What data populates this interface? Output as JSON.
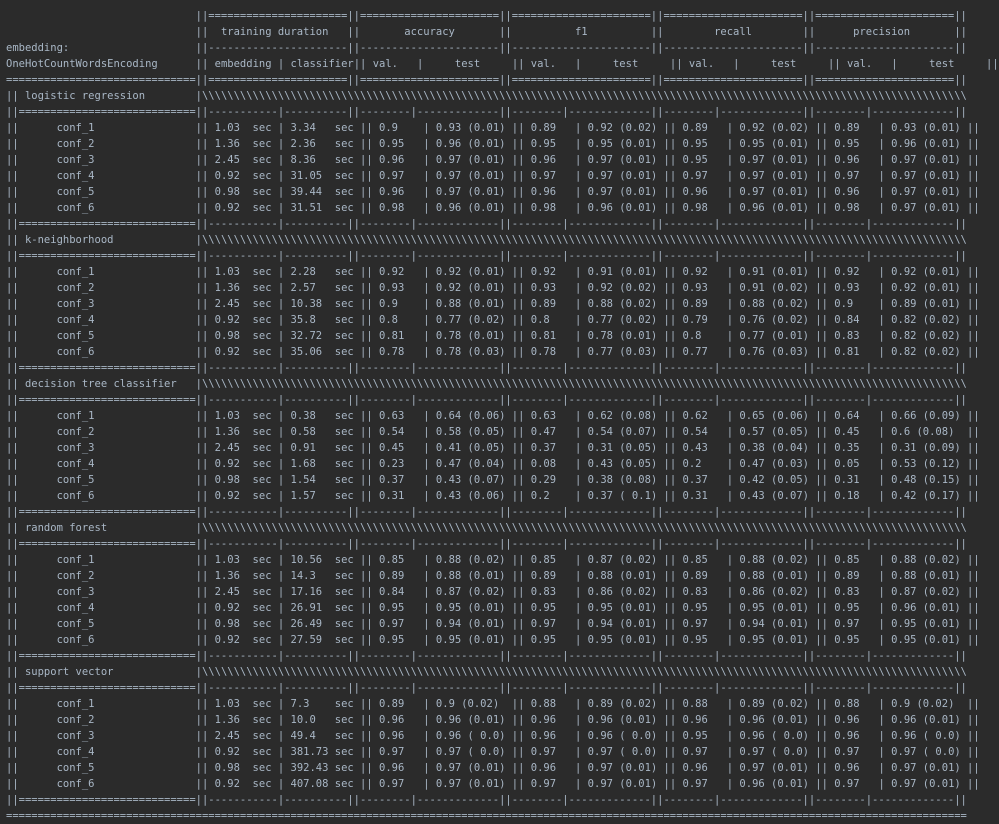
{
  "header": {
    "embedding_label": "embedding:",
    "embedding_name": "OneHotCountWordsEncoding",
    "metric_groups": [
      "training duration",
      "accuracy",
      "f1",
      "recall",
      "precision"
    ],
    "sub_headers": {
      "embedding": "embedding",
      "classifier": "classifier",
      "val": "val.",
      "test": "test"
    },
    "time_unit": "sec"
  },
  "sections": [
    {
      "name": "logistic regression",
      "rows": [
        [
          "conf_1",
          "1.03",
          "3.34",
          "0.9",
          "0.93 (0.01)",
          "0.89",
          "0.92 (0.02)",
          "0.89",
          "0.92 (0.02)",
          "0.89",
          "0.93 (0.01)"
        ],
        [
          "conf_2",
          "1.36",
          "2.36",
          "0.95",
          "0.96 (0.01)",
          "0.95",
          "0.95 (0.01)",
          "0.95",
          "0.95 (0.01)",
          "0.95",
          "0.96 (0.01)"
        ],
        [
          "conf_3",
          "2.45",
          "8.36",
          "0.96",
          "0.97 (0.01)",
          "0.96",
          "0.97 (0.01)",
          "0.95",
          "0.97 (0.01)",
          "0.96",
          "0.97 (0.01)"
        ],
        [
          "conf_4",
          "0.92",
          "31.05",
          "0.97",
          "0.97 (0.01)",
          "0.97",
          "0.97 (0.01)",
          "0.97",
          "0.97 (0.01)",
          "0.97",
          "0.97 (0.01)"
        ],
        [
          "conf_5",
          "0.98",
          "39.44",
          "0.96",
          "0.97 (0.01)",
          "0.96",
          "0.97 (0.01)",
          "0.96",
          "0.97 (0.01)",
          "0.96",
          "0.97 (0.01)"
        ],
        [
          "conf_6",
          "0.92",
          "31.51",
          "0.98",
          "0.96 (0.01)",
          "0.98",
          "0.96 (0.01)",
          "0.98",
          "0.96 (0.01)",
          "0.98",
          "0.97 (0.01)"
        ]
      ]
    },
    {
      "name": "k-neighborhood",
      "rows": [
        [
          "conf_1",
          "1.03",
          "2.28",
          "0.92",
          "0.92 (0.01)",
          "0.92",
          "0.91 (0.01)",
          "0.92",
          "0.91 (0.01)",
          "0.92",
          "0.92 (0.01)"
        ],
        [
          "conf_2",
          "1.36",
          "2.57",
          "0.93",
          "0.92 (0.01)",
          "0.93",
          "0.92 (0.02)",
          "0.93",
          "0.91 (0.02)",
          "0.93",
          "0.92 (0.01)"
        ],
        [
          "conf_3",
          "2.45",
          "10.38",
          "0.9",
          "0.88 (0.01)",
          "0.89",
          "0.88 (0.02)",
          "0.89",
          "0.88 (0.02)",
          "0.9",
          "0.89 (0.01)"
        ],
        [
          "conf_4",
          "0.92",
          "35.8",
          "0.8",
          "0.77 (0.02)",
          "0.8",
          "0.77 (0.02)",
          "0.79",
          "0.76 (0.02)",
          "0.84",
          "0.82 (0.02)"
        ],
        [
          "conf_5",
          "0.98",
          "32.72",
          "0.81",
          "0.78 (0.01)",
          "0.81",
          "0.78 (0.01)",
          "0.8",
          "0.77 (0.01)",
          "0.83",
          "0.82 (0.02)"
        ],
        [
          "conf_6",
          "0.92",
          "35.06",
          "0.78",
          "0.78 (0.03)",
          "0.78",
          "0.77 (0.03)",
          "0.77",
          "0.76 (0.03)",
          "0.81",
          "0.82 (0.02)"
        ]
      ]
    },
    {
      "name": "decision tree classifier",
      "rows": [
        [
          "conf_1",
          "1.03",
          "0.38",
          "0.63",
          "0.64 (0.06)",
          "0.63",
          "0.62 (0.08)",
          "0.62",
          "0.65 (0.06)",
          "0.64",
          "0.66 (0.09)"
        ],
        [
          "conf_2",
          "1.36",
          "0.58",
          "0.54",
          "0.58 (0.05)",
          "0.47",
          "0.54 (0.07)",
          "0.54",
          "0.57 (0.05)",
          "0.45",
          "0.6 (0.08)"
        ],
        [
          "conf_3",
          "2.45",
          "0.91",
          "0.45",
          "0.41 (0.05)",
          "0.37",
          "0.31 (0.05)",
          "0.43",
          "0.38 (0.04)",
          "0.35",
          "0.31 (0.09)"
        ],
        [
          "conf_4",
          "0.92",
          "1.68",
          "0.23",
          "0.47 (0.04)",
          "0.08",
          "0.43 (0.05)",
          "0.2",
          "0.47 (0.03)",
          "0.05",
          "0.53 (0.12)"
        ],
        [
          "conf_5",
          "0.98",
          "1.54",
          "0.37",
          "0.43 (0.07)",
          "0.29",
          "0.38 (0.08)",
          "0.37",
          "0.42 (0.05)",
          "0.31",
          "0.48 (0.15)"
        ],
        [
          "conf_6",
          "0.92",
          "1.57",
          "0.31",
          "0.43 (0.06)",
          "0.2",
          "0.37 ( 0.1)",
          "0.31",
          "0.43 (0.07)",
          "0.18",
          "0.42 (0.17)"
        ]
      ]
    },
    {
      "name": "random forest",
      "rows": [
        [
          "conf_1",
          "1.03",
          "10.56",
          "0.85",
          "0.88 (0.02)",
          "0.85",
          "0.87 (0.02)",
          "0.85",
          "0.88 (0.02)",
          "0.85",
          "0.88 (0.02)"
        ],
        [
          "conf_2",
          "1.36",
          "14.3",
          "0.89",
          "0.88 (0.01)",
          "0.89",
          "0.88 (0.01)",
          "0.89",
          "0.88 (0.01)",
          "0.89",
          "0.88 (0.01)"
        ],
        [
          "conf_3",
          "2.45",
          "17.16",
          "0.84",
          "0.87 (0.02)",
          "0.83",
          "0.86 (0.02)",
          "0.83",
          "0.86 (0.02)",
          "0.83",
          "0.87 (0.02)"
        ],
        [
          "conf_4",
          "0.92",
          "26.91",
          "0.95",
          "0.95 (0.01)",
          "0.95",
          "0.95 (0.01)",
          "0.95",
          "0.95 (0.01)",
          "0.95",
          "0.96 (0.01)"
        ],
        [
          "conf_5",
          "0.98",
          "26.49",
          "0.97",
          "0.94 (0.01)",
          "0.97",
          "0.94 (0.01)",
          "0.97",
          "0.94 (0.01)",
          "0.97",
          "0.95 (0.01)"
        ],
        [
          "conf_6",
          "0.92",
          "27.59",
          "0.95",
          "0.95 (0.01)",
          "0.95",
          "0.95 (0.01)",
          "0.95",
          "0.95 (0.01)",
          "0.95",
          "0.95 (0.01)"
        ]
      ]
    },
    {
      "name": "support vector",
      "rows": [
        [
          "conf_1",
          "1.03",
          "7.3",
          "0.89",
          "0.9 (0.02)",
          "0.88",
          "0.89 (0.02)",
          "0.88",
          "0.89 (0.02)",
          "0.88",
          "0.9 (0.02)"
        ],
        [
          "conf_2",
          "1.36",
          "10.0",
          "0.96",
          "0.96 (0.01)",
          "0.96",
          "0.96 (0.01)",
          "0.96",
          "0.96 (0.01)",
          "0.96",
          "0.96 (0.01)"
        ],
        [
          "conf_3",
          "2.45",
          "49.4",
          "0.96",
          "0.96 ( 0.0)",
          "0.96",
          "0.96 ( 0.0)",
          "0.95",
          "0.96 ( 0.0)",
          "0.96",
          "0.96 ( 0.0)"
        ],
        [
          "conf_4",
          "0.92",
          "381.73",
          "0.97",
          "0.97 ( 0.0)",
          "0.97",
          "0.97 ( 0.0)",
          "0.97",
          "0.97 ( 0.0)",
          "0.97",
          "0.97 ( 0.0)"
        ],
        [
          "conf_5",
          "0.98",
          "392.43",
          "0.96",
          "0.97 (0.01)",
          "0.96",
          "0.97 (0.01)",
          "0.96",
          "0.97 (0.01)",
          "0.96",
          "0.97 (0.01)"
        ],
        [
          "conf_6",
          "0.92",
          "407.08",
          "0.97",
          "0.97 (0.01)",
          "0.97",
          "0.97 (0.01)",
          "0.97",
          "0.96 (0.01)",
          "0.97",
          "0.97 (0.01)"
        ]
      ]
    }
  ]
}
